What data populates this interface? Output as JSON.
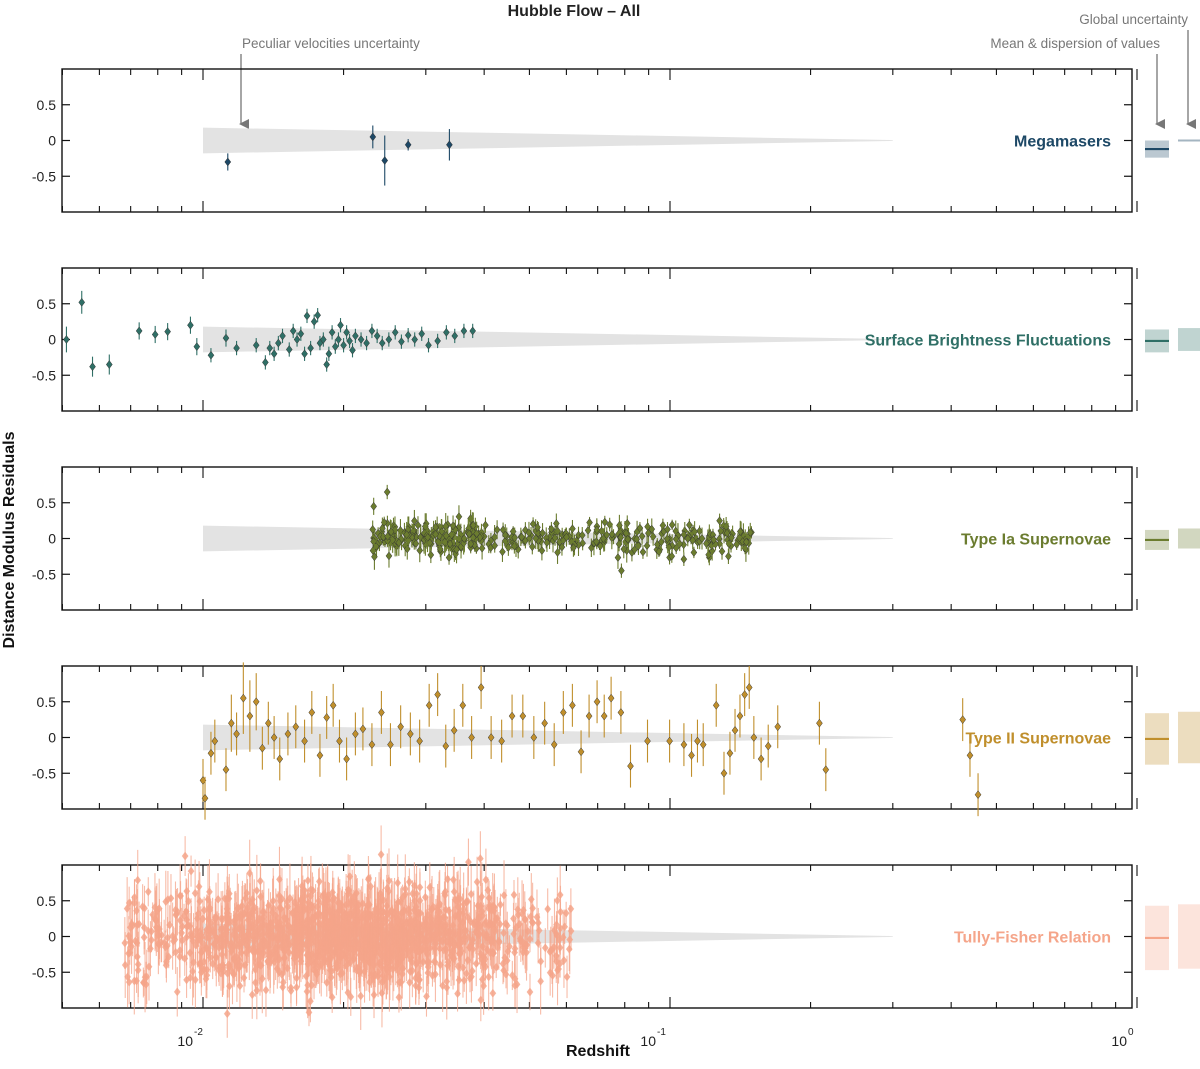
{
  "chart_data": {
    "type": "scatter",
    "title": "Hubble Flow – All",
    "xlabel": "Redshift",
    "ylabel": "Distance Modulus Residuals",
    "xscale": "log",
    "xlim": [
      0.005,
      1.0
    ],
    "ylim": [
      -1.0,
      1.0
    ],
    "x_ticks": [
      0.01,
      0.1,
      1.0
    ],
    "x_tick_labels": [
      "10",
      "-2",
      "10",
      "-1",
      "10",
      "0"
    ],
    "y_ticks": [
      0.5,
      0,
      -0.5
    ],
    "y_tick_labels": [
      "0.5",
      "0",
      "-0.5"
    ],
    "peculiar_velocity_band": {
      "x_start": 0.01,
      "x_end": 0.3,
      "half_width_at_start": 0.18,
      "half_width_at_end": 0.006
    },
    "annotations": {
      "peculiar": "Peculiar velocities uncertainty",
      "global": "Global uncertainty",
      "mean": "Mean & dispersion of values"
    },
    "panels": [
      {
        "name": "Megamasers",
        "color": "#1d4866",
        "mean": -0.12,
        "dispersion": 0.12,
        "global_uncertainty": 0.0,
        "points": [
          [
            0.0113,
            -0.3,
            0.12
          ],
          [
            0.0231,
            0.05,
            0.16
          ],
          [
            0.0245,
            -0.28,
            0.35
          ],
          [
            0.0275,
            -0.06,
            0.08
          ],
          [
            0.0337,
            -0.06,
            0.22
          ]
        ]
      },
      {
        "name": "Surface Brightness Fluctuations",
        "color": "#2f6f66",
        "mean": -0.02,
        "dispersion": 0.16,
        "global_uncertainty": 0.16,
        "points": [
          [
            0.0051,
            0.0,
            0.18
          ],
          [
            0.0055,
            0.52,
            0.16
          ],
          [
            0.0058,
            -0.38,
            0.14
          ],
          [
            0.0063,
            -0.35,
            0.14
          ],
          [
            0.0073,
            0.12,
            0.12
          ],
          [
            0.0079,
            0.07,
            0.12
          ],
          [
            0.0084,
            0.11,
            0.12
          ],
          [
            0.0094,
            0.2,
            0.12
          ],
          [
            0.0097,
            -0.1,
            0.12
          ],
          [
            0.0104,
            -0.22,
            0.1
          ],
          [
            0.0112,
            0.02,
            0.12
          ],
          [
            0.0118,
            -0.12,
            0.1
          ],
          [
            0.013,
            -0.08,
            0.1
          ],
          [
            0.0136,
            -0.32,
            0.1
          ],
          [
            0.0139,
            -0.12,
            0.1
          ],
          [
            0.0142,
            -0.2,
            0.1
          ],
          [
            0.0145,
            -0.05,
            0.1
          ],
          [
            0.0148,
            0.05,
            0.1
          ],
          [
            0.0153,
            -0.14,
            0.1
          ],
          [
            0.0156,
            0.12,
            0.1
          ],
          [
            0.0159,
            0.0,
            0.1
          ],
          [
            0.0162,
            0.08,
            0.1
          ],
          [
            0.0165,
            -0.2,
            0.1
          ],
          [
            0.0167,
            0.33,
            0.1
          ],
          [
            0.017,
            -0.12,
            0.1
          ],
          [
            0.0173,
            0.25,
            0.1
          ],
          [
            0.0176,
            0.34,
            0.1
          ],
          [
            0.0178,
            -0.05,
            0.1
          ],
          [
            0.0181,
            0.0,
            0.1
          ],
          [
            0.0184,
            -0.35,
            0.1
          ],
          [
            0.0186,
            -0.2,
            0.1
          ],
          [
            0.0189,
            0.1,
            0.1
          ],
          [
            0.0192,
            -0.1,
            0.1
          ],
          [
            0.0195,
            0.0,
            0.1
          ],
          [
            0.0197,
            0.2,
            0.1
          ],
          [
            0.02,
            -0.08,
            0.1
          ],
          [
            0.0203,
            0.1,
            0.1
          ],
          [
            0.0206,
            -0.02,
            0.1
          ],
          [
            0.0209,
            -0.15,
            0.1
          ],
          [
            0.0212,
            0.05,
            0.1
          ],
          [
            0.0218,
            0.0,
            0.1
          ],
          [
            0.0224,
            -0.05,
            0.1
          ],
          [
            0.023,
            0.12,
            0.1
          ],
          [
            0.0236,
            0.05,
            0.1
          ],
          [
            0.0242,
            -0.05,
            0.1
          ],
          [
            0.025,
            0.0,
            0.1
          ],
          [
            0.0258,
            0.1,
            0.1
          ],
          [
            0.0266,
            -0.03,
            0.1
          ],
          [
            0.0275,
            0.06,
            0.1
          ],
          [
            0.0284,
            0.0,
            0.1
          ],
          [
            0.0294,
            0.08,
            0.1
          ],
          [
            0.0304,
            -0.08,
            0.1
          ],
          [
            0.0318,
            -0.02,
            0.1
          ],
          [
            0.0332,
            0.1,
            0.1
          ],
          [
            0.0346,
            0.05,
            0.1
          ],
          [
            0.0362,
            0.12,
            0.1
          ],
          [
            0.0378,
            0.12,
            0.1
          ]
        ]
      },
      {
        "name": "Type Ia Supernovae",
        "color": "#6b7c2f",
        "mean": -0.02,
        "dispersion": 0.14,
        "global_uncertainty": 0.14
      },
      {
        "name": "Type II Supernovae",
        "color": "#c08f2c",
        "mean": -0.02,
        "dispersion": 0.36,
        "global_uncertainty": 0.36,
        "points": [
          [
            0.01,
            -0.6,
            0.3
          ],
          [
            0.0101,
            -0.85,
            0.3
          ],
          [
            0.0104,
            -0.22,
            0.3
          ],
          [
            0.0106,
            -0.05,
            0.3
          ],
          [
            0.0112,
            -0.45,
            0.3
          ],
          [
            0.0115,
            0.2,
            0.4
          ],
          [
            0.0118,
            0.05,
            0.3
          ],
          [
            0.0122,
            0.55,
            0.5
          ],
          [
            0.0126,
            0.3,
            0.5
          ],
          [
            0.013,
            0.5,
            0.4
          ],
          [
            0.0134,
            -0.15,
            0.3
          ],
          [
            0.0138,
            0.2,
            0.3
          ],
          [
            0.0142,
            0.0,
            0.3
          ],
          [
            0.0146,
            -0.3,
            0.3
          ],
          [
            0.0152,
            0.05,
            0.3
          ],
          [
            0.0158,
            0.15,
            0.3
          ],
          [
            0.0165,
            -0.05,
            0.3
          ],
          [
            0.0171,
            0.35,
            0.3
          ],
          [
            0.0178,
            -0.25,
            0.3
          ],
          [
            0.0184,
            0.28,
            0.3
          ],
          [
            0.019,
            0.45,
            0.3
          ],
          [
            0.0196,
            -0.05,
            0.3
          ],
          [
            0.0203,
            -0.3,
            0.3
          ],
          [
            0.0212,
            0.05,
            0.3
          ],
          [
            0.022,
            0.12,
            0.3
          ],
          [
            0.023,
            -0.1,
            0.3
          ],
          [
            0.0241,
            0.35,
            0.3
          ],
          [
            0.0252,
            -0.1,
            0.3
          ],
          [
            0.0265,
            0.15,
            0.3
          ],
          [
            0.0278,
            0.05,
            0.3
          ],
          [
            0.0291,
            -0.05,
            0.3
          ],
          [
            0.0305,
            0.45,
            0.3
          ],
          [
            0.0318,
            0.6,
            0.3
          ],
          [
            0.0331,
            -0.12,
            0.3
          ],
          [
            0.0345,
            0.1,
            0.3
          ],
          [
            0.036,
            0.45,
            0.3
          ],
          [
            0.0376,
            0.0,
            0.3
          ],
          [
            0.0394,
            0.7,
            0.3
          ],
          [
            0.0414,
            0.0,
            0.3
          ],
          [
            0.0436,
            -0.05,
            0.3
          ],
          [
            0.0459,
            0.3,
            0.3
          ],
          [
            0.0484,
            0.3,
            0.3
          ],
          [
            0.0511,
            0.0,
            0.3
          ],
          [
            0.0539,
            0.2,
            0.3
          ],
          [
            0.0565,
            -0.1,
            0.3
          ],
          [
            0.0591,
            0.35,
            0.3
          ],
          [
            0.0618,
            0.45,
            0.3
          ],
          [
            0.0645,
            -0.2,
            0.3
          ],
          [
            0.0671,
            0.3,
            0.3
          ],
          [
            0.0698,
            0.5,
            0.3
          ],
          [
            0.0723,
            0.3,
            0.3
          ],
          [
            0.0748,
            0.55,
            0.3
          ],
          [
            0.0785,
            0.35,
            0.3
          ],
          [
            0.0823,
            -0.4,
            0.3
          ],
          [
            0.0895,
            -0.05,
            0.3
          ],
          [
            0.0998,
            -0.05,
            0.3
          ],
          [
            0.1071,
            -0.1,
            0.3
          ],
          [
            0.1112,
            -0.25,
            0.3
          ],
          [
            0.1145,
            -0.05,
            0.3
          ],
          [
            0.1178,
            -0.1,
            0.3
          ],
          [
            0.1256,
            0.45,
            0.3
          ],
          [
            0.1305,
            -0.5,
            0.3
          ],
          [
            0.1344,
            -0.22,
            0.3
          ],
          [
            0.1378,
            0.1,
            0.3
          ],
          [
            0.1412,
            0.3,
            0.3
          ],
          [
            0.1445,
            0.6,
            0.3
          ],
          [
            0.1478,
            0.7,
            0.3
          ],
          [
            0.1512,
            0.0,
            0.3
          ],
          [
            0.1567,
            -0.3,
            0.3
          ],
          [
            0.1623,
            -0.12,
            0.3
          ],
          [
            0.1701,
            0.15,
            0.3
          ],
          [
            0.2089,
            0.2,
            0.3
          ],
          [
            0.2156,
            -0.45,
            0.3
          ],
          [
            0.4234,
            0.25,
            0.3
          ],
          [
            0.4389,
            -0.25,
            0.3
          ],
          [
            0.4567,
            -0.8,
            0.3
          ]
        ]
      },
      {
        "name": "Tully-Fisher Relation",
        "color": "#f5a58a",
        "mean": -0.02,
        "dispersion": 0.45,
        "global_uncertainty": 0.45
      }
    ]
  }
}
